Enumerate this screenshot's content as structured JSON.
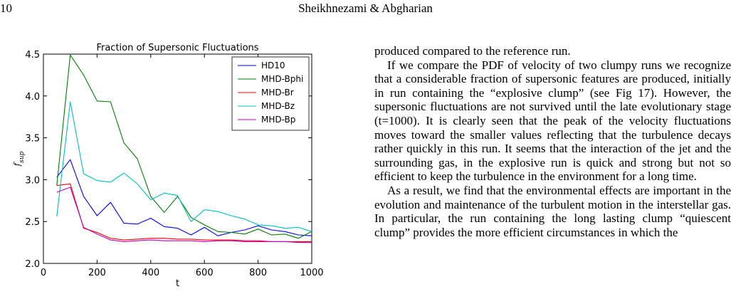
{
  "header": {
    "page_number": "10",
    "authors": "Sheikhnezami & Abgharian"
  },
  "paragraphs": [
    "produced compared to the reference run.",
    "If we compare the PDF of velocity of two clumpy runs we recognize that a considerable fraction of supersonic features are produced, initially in run containing the “explosive clump” (see Fig 17). However, the supersonic fluctuations are not survived until the late evolutionary stage (t=1000). It is clearly seen that the peak of the velocity fluctuations moves toward the smaller values reflecting that the turbulence decays rather quickly in this run. It seems that the interaction of the jet and the surrounding gas, in the explosive run is quick and strong but not so efficient to keep the turbulence in the environment for a long time.",
    "As a result, we find that the environmental effects are important in the evolution and maintenance of the turbulent motion in the interstellar gas. In particular, the run containing the long lasting clump “quiescent clump” provides the more efficient circumstances in which the"
  ],
  "chart_data": {
    "type": "line",
    "title": "Fraction of Supersonic Fluctuations",
    "xlabel": "t",
    "ylabel": "f_sup",
    "xlim": [
      0,
      1000
    ],
    "ylim": [
      2.0,
      4.5
    ],
    "xticks": [
      0,
      200,
      400,
      600,
      800,
      1000
    ],
    "yticks": [
      2.0,
      2.5,
      3.0,
      3.5,
      4.0,
      4.5
    ],
    "grid": false,
    "legend_position": "top-right",
    "x": [
      50,
      100,
      150,
      200,
      250,
      300,
      350,
      400,
      450,
      500,
      550,
      600,
      650,
      700,
      750,
      800,
      850,
      900,
      950,
      1000
    ],
    "series": [
      {
        "name": "HD10",
        "color": "#0000ff",
        "values": [
          3.03,
          3.24,
          2.8,
          2.57,
          2.73,
          2.48,
          2.47,
          2.54,
          2.44,
          2.42,
          2.34,
          2.43,
          2.33,
          2.37,
          2.4,
          2.45,
          2.4,
          2.38,
          2.34,
          2.33
        ]
      },
      {
        "name": "MHD-Bphi",
        "color": "#008000",
        "values": [
          2.93,
          4.49,
          4.25,
          3.94,
          3.93,
          3.44,
          3.25,
          2.8,
          2.61,
          2.8,
          2.55,
          2.46,
          2.38,
          2.37,
          2.35,
          2.41,
          2.34,
          2.35,
          2.3,
          2.38
        ]
      },
      {
        "name": "MHD-Br",
        "color": "#ff0000",
        "values": [
          2.93,
          2.95,
          2.42,
          2.37,
          2.3,
          2.28,
          2.29,
          2.3,
          2.3,
          2.29,
          2.29,
          2.28,
          2.28,
          2.28,
          2.27,
          2.27,
          2.26,
          2.26,
          2.26,
          2.26
        ]
      },
      {
        "name": "MHD-Bz",
        "color": "#00bfbf",
        "values": [
          2.56,
          3.93,
          3.07,
          2.99,
          2.97,
          3.08,
          2.95,
          2.76,
          2.84,
          2.81,
          2.5,
          2.64,
          2.62,
          2.57,
          2.53,
          2.46,
          2.45,
          2.42,
          2.43,
          2.38
        ]
      },
      {
        "name": "MHD-Bp",
        "color": "#bf00bf",
        "values": [
          2.85,
          2.91,
          2.43,
          2.35,
          2.28,
          2.26,
          2.27,
          2.28,
          2.27,
          2.27,
          2.27,
          2.26,
          2.27,
          2.27,
          2.26,
          2.26,
          2.26,
          2.26,
          2.25,
          2.25
        ]
      }
    ]
  }
}
